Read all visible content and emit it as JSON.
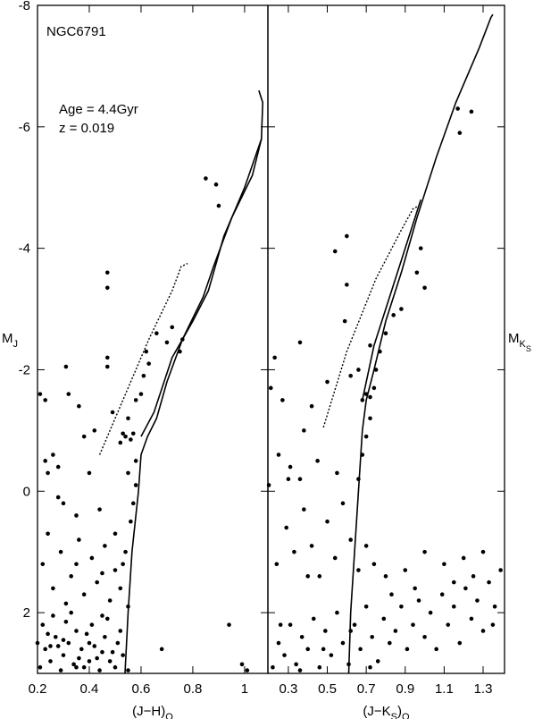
{
  "chart_data": [
    {
      "type": "scatter",
      "xlim": [
        0.2,
        1.09
      ],
      "ylim": [
        -8,
        3
      ],
      "xticks": [
        0.2,
        0.4,
        0.6,
        0.8,
        1
      ],
      "yticks": [
        -8,
        -6,
        -4,
        -2,
        0,
        2
      ],
      "ytick_labels": true,
      "xlabel": [
        {
          "text": "(J−H)"
        },
        {
          "text": "O",
          "sub": 1
        }
      ],
      "ylabel": [
        {
          "text": "M"
        },
        {
          "text": "J",
          "sub": 1
        }
      ],
      "annotations": [
        "NGC6791",
        "Age = 4.4Gyr",
        "z = 0.019"
      ],
      "color": "#000000",
      "points": {
        "x": [
          0.21,
          0.23,
          0.25,
          0.27,
          0.29,
          0.3,
          0.32,
          0.34,
          0.35,
          0.37,
          0.38,
          0.4,
          0.41,
          0.43,
          0.44,
          0.46,
          0.47,
          0.49,
          0.5,
          0.52,
          0.22,
          0.24,
          0.26,
          0.28,
          0.31,
          0.33,
          0.36,
          0.39,
          0.42,
          0.45,
          0.48,
          0.51,
          0.53,
          0.55,
          0.2,
          0.25,
          0.3,
          0.35,
          0.4,
          0.45,
          0.22,
          0.26,
          0.29,
          0.33,
          0.36,
          0.38,
          0.41,
          0.43,
          0.46,
          0.48,
          0.5,
          0.52,
          0.54,
          0.55,
          0.31,
          0.24,
          0.35,
          0.45,
          0.5,
          0.53,
          0.56,
          0.57,
          0.58,
          0.55,
          0.58,
          0.52,
          0.54,
          0.56,
          0.57,
          0.53,
          0.55,
          0.58,
          0.6,
          0.61,
          0.63,
          0.62,
          0.66,
          0.7,
          0.75,
          0.76,
          0.72,
          0.21,
          0.23,
          0.31,
          0.32,
          0.36,
          0.47,
          0.47,
          0.47,
          0.47,
          0.26,
          0.28,
          0.24,
          0.3,
          0.4,
          0.44,
          0.38,
          0.49,
          0.42,
          0.35,
          0.28,
          0.23,
          0.85,
          0.89,
          0.9,
          0.94,
          0.99,
          1.01,
          0.68
        ],
        "y": [
          2.9,
          2.6,
          2.8,
          2.4,
          2.95,
          2.7,
          2.5,
          2.85,
          2.3,
          2.6,
          2.9,
          2.5,
          2.2,
          2.75,
          2.95,
          2.4,
          2.1,
          2.65,
          2.9,
          2.3,
          2.2,
          2.35,
          2.05,
          2.55,
          2.15,
          2.0,
          2.75,
          2.35,
          2.55,
          2.05,
          2.8,
          2.5,
          2.7,
          2.95,
          2.5,
          2.55,
          2.45,
          2.9,
          2.8,
          2.65,
          1.2,
          1.6,
          1.0,
          1.4,
          0.8,
          1.7,
          1.1,
          1.5,
          0.9,
          1.8,
          1.3,
          1.6,
          1.0,
          1.9,
          1.85,
          0.7,
          1.2,
          1.35,
          0.7,
          1.2,
          0.5,
          0.2,
          -0.1,
          -0.3,
          -0.5,
          -0.8,
          -0.9,
          -0.85,
          -0.95,
          -0.95,
          -1.2,
          -1.5,
          -1.6,
          -1.9,
          -2.1,
          -2.3,
          -2.6,
          -2.45,
          -2.3,
          -2.5,
          -2.7,
          -1.6,
          -1.5,
          -2.05,
          -1.6,
          -1.4,
          -2.2,
          -2.05,
          -3.6,
          -3.35,
          -0.6,
          -0.4,
          -0.3,
          0.2,
          -0.3,
          0.3,
          -0.9,
          -1.3,
          -1.0,
          0.4,
          0.1,
          -0.5,
          -5.15,
          -5.05,
          -4.7,
          2.2,
          2.85,
          2.95,
          2.6
        ]
      },
      "lines": [
        {
          "style": "solid",
          "x": [
            0.538,
            0.55,
            0.565,
            0.59,
            0.6,
            0.625,
            0.66,
            0.7,
            0.76,
            0.84,
            0.88,
            0.95,
            1.03,
            1.065,
            1.07,
            1.055
          ],
          "y": [
            3,
            2,
            1,
            0,
            -0.6,
            -0.9,
            -1.2,
            -1.8,
            -2.5,
            -3.2,
            -3.7,
            -4.5,
            -5.2,
            -5.8,
            -6.4,
            -6.6
          ]
        },
        {
          "style": "solid",
          "x": [
            0.6,
            0.65,
            0.72,
            0.8,
            0.86,
            0.92,
            1.0,
            1.065
          ],
          "y": [
            -0.9,
            -1.3,
            -2.2,
            -2.8,
            -3.3,
            -4.2,
            -5.0,
            -5.8
          ]
        },
        {
          "style": "dotted",
          "x": [
            0.44,
            0.53,
            0.63,
            0.72,
            0.755,
            0.78
          ],
          "y": [
            -0.6,
            -1.5,
            -2.5,
            -3.3,
            -3.7,
            -3.75
          ]
        }
      ]
    },
    {
      "type": "scatter",
      "xlim": [
        0.195,
        1.41
      ],
      "ylim": [
        -8,
        3
      ],
      "xticks": [
        0.3,
        0.5,
        0.7,
        0.9,
        1.1,
        1.3
      ],
      "yticks": [
        -8,
        -6,
        -4,
        -2,
        0,
        2
      ],
      "ytick_labels": false,
      "xlabel": [
        {
          "text": "(J−K"
        },
        {
          "text": "S",
          "sub": 1
        },
        {
          "text": ")"
        },
        {
          "text": "O",
          "sub": 1
        }
      ],
      "ylabel": [
        {
          "text": "M"
        },
        {
          "text": "K",
          "sub": 1
        },
        {
          "text": "S",
          "sub": 2
        }
      ],
      "color": "#000000",
      "points": {
        "x": [
          0.22,
          0.25,
          0.28,
          0.31,
          0.34,
          0.37,
          0.4,
          0.43,
          0.46,
          0.49,
          0.52,
          0.55,
          0.58,
          0.61,
          0.64,
          0.67,
          0.7,
          0.73,
          0.76,
          0.79,
          0.82,
          0.85,
          0.88,
          0.91,
          0.94,
          0.97,
          1.0,
          1.03,
          1.06,
          1.09,
          1.12,
          1.15,
          1.18,
          1.21,
          1.24,
          1.27,
          1.3,
          1.33,
          1.36,
          1.39,
          1.35,
          1.25,
          1.15,
          0.95,
          0.83,
          0.72,
          0.62,
          0.48,
          0.36,
          0.26,
          0.24,
          0.29,
          0.33,
          0.38,
          0.42,
          0.46,
          0.5,
          0.54,
          0.58,
          0.62,
          0.66,
          0.7,
          0.74,
          0.8,
          0.9,
          1.0,
          1.1,
          1.2,
          1.3,
          0.36,
          0.31,
          0.45,
          0.4,
          0.66,
          0.68,
          0.7,
          0.72,
          0.68,
          0.7,
          0.72,
          0.74,
          0.75,
          0.77,
          0.8,
          0.84,
          0.88,
          0.72,
          0.66,
          0.62,
          0.6,
          0.59,
          0.6,
          0.54,
          0.21,
          0.23,
          0.27,
          0.36,
          0.3,
          0.25,
          0.38,
          0.42,
          0.5,
          0.55,
          0.2,
          1.17,
          1.18,
          1.24,
          0.96,
          0.98,
          1.0
        ],
        "y": [
          2.9,
          2.5,
          2.7,
          2.2,
          2.85,
          2.4,
          2.6,
          2.1,
          2.9,
          2.3,
          2.7,
          2.0,
          2.5,
          2.85,
          2.2,
          2.6,
          1.9,
          2.4,
          2.8,
          2.1,
          2.5,
          2.3,
          1.9,
          2.6,
          2.2,
          1.8,
          2.4,
          2.0,
          2.6,
          1.7,
          2.2,
          1.9,
          2.5,
          1.6,
          2.1,
          1.8,
          2.3,
          1.5,
          1.9,
          1.3,
          2.2,
          1.4,
          1.5,
          1.6,
          1.7,
          2.9,
          2.3,
          2.6,
          2.95,
          2.2,
          1.2,
          0.6,
          1.0,
          0.3,
          0.9,
          1.4,
          0.5,
          1.1,
          0.2,
          0.8,
          1.3,
          0.9,
          1.2,
          1.4,
          1.3,
          1.0,
          1.2,
          1.1,
          1.0,
          -0.2,
          -0.4,
          -0.5,
          1.4,
          -0.2,
          -0.6,
          -0.9,
          -1.2,
          -1.5,
          -1.6,
          -1.55,
          -1.7,
          -2.0,
          -2.3,
          -2.6,
          -2.9,
          -3.0,
          -2.4,
          -2.0,
          -1.9,
          -3.4,
          -2.8,
          -4.2,
          -3.95,
          -1.7,
          -2.2,
          -1.5,
          -2.45,
          -0.2,
          -0.6,
          -1.0,
          -1.4,
          -1.8,
          -0.3,
          -0.1,
          -6.3,
          -5.9,
          -6.25,
          -3.6,
          -4.0,
          -3.35
        ]
      },
      "lines": [
        {
          "style": "solid",
          "x": [
            0.61,
            0.62,
            0.64,
            0.66,
            0.68,
            0.7,
            0.74,
            0.8,
            0.88,
            0.96,
            1.06,
            1.16,
            1.28,
            1.34,
            1.35
          ],
          "y": [
            3,
            2,
            1,
            0,
            -1.0,
            -1.5,
            -2.0,
            -2.8,
            -3.6,
            -4.5,
            -5.5,
            -6.4,
            -7.3,
            -7.8,
            -7.85
          ]
        },
        {
          "style": "solid",
          "x": [
            0.68,
            0.74,
            0.82,
            0.9,
            0.98
          ],
          "y": [
            -1.5,
            -2.4,
            -3.2,
            -4.0,
            -4.8
          ]
        },
        {
          "style": "dotted",
          "x": [
            0.48,
            0.6,
            0.75,
            0.88,
            0.94,
            0.97
          ],
          "y": [
            -1.05,
            -2.3,
            -3.5,
            -4.3,
            -4.65,
            -4.7
          ]
        }
      ]
    }
  ]
}
